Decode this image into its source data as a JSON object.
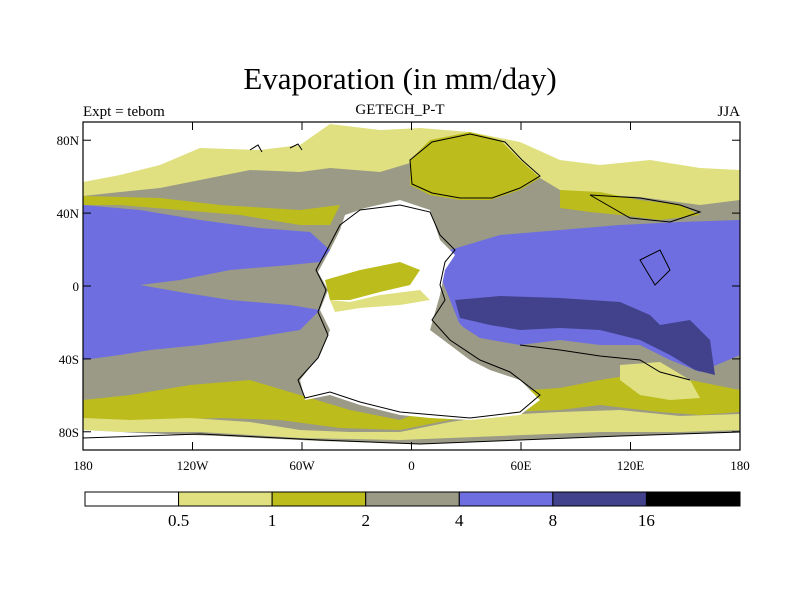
{
  "title": "Evaporation (in mm/day)",
  "left_label": "Expt = tebom",
  "center_label": "GETECH_P-T",
  "right_label": "JJA",
  "x_ticks": [
    {
      "value": -180,
      "label": "180"
    },
    {
      "value": -120,
      "label": "120W"
    },
    {
      "value": -60,
      "label": "60W"
    },
    {
      "value": 0,
      "label": "0"
    },
    {
      "value": 60,
      "label": "60E"
    },
    {
      "value": 120,
      "label": "120E"
    },
    {
      "value": 180,
      "label": "180"
    }
  ],
  "y_ticks": [
    {
      "value": 80,
      "label": "80N"
    },
    {
      "value": 40,
      "label": "40N"
    },
    {
      "value": 0,
      "label": "0"
    },
    {
      "value": -40,
      "label": "40S"
    },
    {
      "value": -80,
      "label": "80S"
    }
  ],
  "lon_range": [
    -180,
    180
  ],
  "lat_range": [
    -90,
    90
  ],
  "colorbar": {
    "colors": [
      "#ffffff",
      "#e0e080",
      "#bcbc1c",
      "#9a9a86",
      "#6e6ee0",
      "#42428c",
      "#000000"
    ],
    "labels": [
      "0.5",
      "1",
      "2",
      "4",
      "8",
      "16"
    ]
  },
  "legend": {
    "bins": [
      {
        "range": "<0.5",
        "color": "#ffffff"
      },
      {
        "range": "0.5-1",
        "color": "#e0e080"
      },
      {
        "range": "1-2",
        "color": "#bcbc1c"
      },
      {
        "range": "2-4",
        "color": "#9a9a86"
      },
      {
        "range": "4-8",
        "color": "#6e6ee0"
      },
      {
        "range": "8-16",
        "color": "#42428c"
      },
      {
        "range": ">16",
        "color": "#000000"
      }
    ]
  }
}
